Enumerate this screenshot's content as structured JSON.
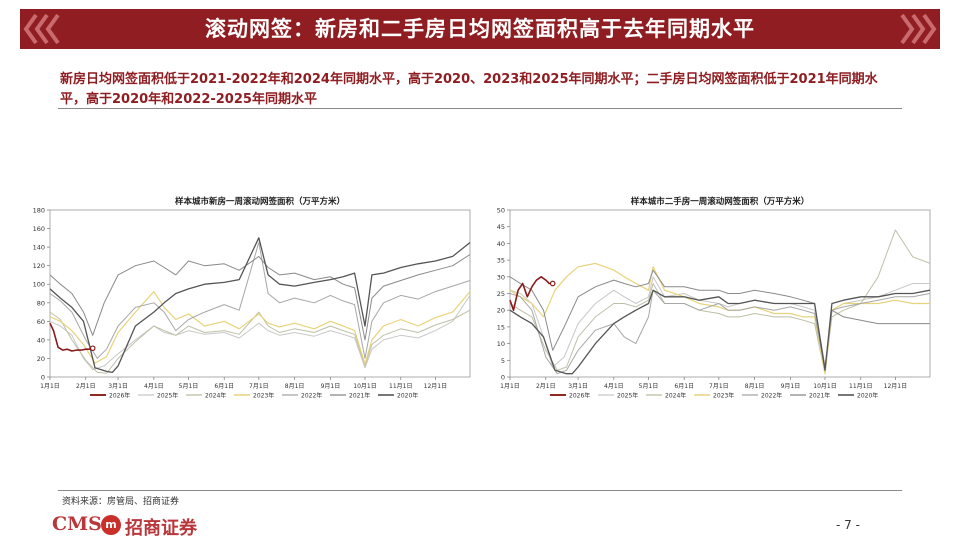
{
  "header": {
    "title": "滚动网签：新房和二手房日均网签面积高于去年同期水平",
    "colors": {
      "banner": "#8f1d21",
      "accent": "#8f1d21"
    }
  },
  "subtitle": "新房日均网签面积低于2021-2022年和2024年同期水平，高于2020、2023和2025年同期水平；二手房日均网签面积低于2021年同期水平，高于2020年和2022-2025年同期水平",
  "footer": {
    "source": "资料来源：房管局、招商证券",
    "logo_latin": "CMS",
    "logo_badge": "m",
    "logo_cn": "招商证券",
    "page": "- 7 -"
  },
  "series_styles": [
    {
      "name": "2026年",
      "color": "#8b1a1a"
    },
    {
      "name": "2025年",
      "color": "#c8c8c8"
    },
    {
      "name": "2024年",
      "color": "#bfbfa8"
    },
    {
      "name": "2023年",
      "color": "#e8d37a"
    },
    {
      "name": "2022年",
      "color": "#a7a7a7"
    },
    {
      "name": "2021年",
      "color": "#8a8a8a"
    },
    {
      "name": "2020年",
      "color": "#555555"
    }
  ],
  "chart_data": [
    {
      "type": "line",
      "title": "样本城市新房一周滚动网签面积（万平方米）",
      "ylim": [
        0,
        180
      ],
      "yticks": [
        "0",
        "20",
        "40",
        "60",
        "80",
        "100",
        "120",
        "140",
        "160",
        "180"
      ],
      "month_positions": [
        1,
        32,
        60,
        91,
        121,
        152,
        182,
        213,
        244,
        274,
        305,
        335
      ],
      "x_tick_labels": [
        "1月1日",
        "2月1日",
        "3月1日",
        "4月1日",
        "5月1日",
        "6月1日",
        "7月1日",
        "8月1日",
        "9月1日",
        "10月1日",
        "11月1日",
        "12月1日"
      ],
      "xlim": [
        1,
        365
      ],
      "series": [
        {
          "name": "2026年",
          "color": "#8b1a1a",
          "width": 1.6,
          "x": [
            1,
            4,
            8,
            12,
            16,
            20,
            24,
            28,
            32,
            35,
            38
          ],
          "y": [
            58,
            50,
            32,
            29,
            30,
            28,
            29,
            29,
            30,
            30,
            31
          ]
        },
        {
          "name": "2025年",
          "color": "#c8c8c8",
          "width": 1.0,
          "x": [
            1,
            10,
            20,
            30,
            38,
            48,
            60,
            75,
            91,
            100,
            110,
            121,
            135,
            152,
            165,
            182,
            190,
            200,
            213,
            230,
            244,
            255,
            265,
            274,
            280,
            290,
            305,
            320,
            335,
            350,
            365
          ],
          "y": [
            60,
            55,
            45,
            20,
            8,
            12,
            25,
            40,
            55,
            48,
            45,
            50,
            46,
            48,
            42,
            58,
            50,
            45,
            48,
            44,
            50,
            46,
            42,
            10,
            30,
            40,
            45,
            42,
            50,
            60,
            88
          ]
        },
        {
          "name": "2024年",
          "color": "#bfbfa8",
          "width": 1.0,
          "x": [
            1,
            10,
            20,
            32,
            42,
            50,
            60,
            75,
            91,
            100,
            110,
            121,
            135,
            152,
            165,
            182,
            190,
            200,
            213,
            230,
            244,
            255,
            265,
            274,
            280,
            290,
            305,
            320,
            335,
            350,
            365
          ],
          "y": [
            70,
            62,
            40,
            18,
            5,
            4,
            20,
            38,
            55,
            50,
            45,
            55,
            48,
            50,
            46,
            70,
            55,
            48,
            52,
            48,
            55,
            50,
            46,
            12,
            35,
            45,
            52,
            48,
            56,
            62,
            72
          ]
        },
        {
          "name": "2023年",
          "color": "#e8d37a",
          "width": 1.2,
          "x": [
            1,
            10,
            20,
            30,
            40,
            50,
            60,
            75,
            91,
            100,
            110,
            121,
            135,
            152,
            165,
            182,
            190,
            200,
            213,
            230,
            244,
            255,
            265,
            274,
            280,
            290,
            305,
            320,
            335,
            350,
            365
          ],
          "y": [
            65,
            60,
            50,
            35,
            15,
            22,
            48,
            70,
            92,
            75,
            62,
            68,
            55,
            60,
            52,
            68,
            58,
            54,
            58,
            52,
            60,
            55,
            50,
            14,
            40,
            55,
            62,
            55,
            64,
            70,
            92
          ]
        },
        {
          "name": "2022年",
          "color": "#a7a7a7",
          "width": 1.0,
          "x": [
            1,
            10,
            20,
            32,
            42,
            50,
            60,
            75,
            91,
            100,
            110,
            121,
            135,
            152,
            165,
            182,
            190,
            200,
            213,
            230,
            244,
            255,
            265,
            274,
            280,
            290,
            305,
            320,
            335,
            350,
            365
          ],
          "y": [
            90,
            82,
            70,
            40,
            20,
            30,
            55,
            75,
            80,
            70,
            50,
            62,
            70,
            78,
            72,
            145,
            90,
            80,
            85,
            80,
            88,
            82,
            78,
            20,
            60,
            80,
            88,
            84,
            92,
            98,
            104
          ]
        },
        {
          "name": "2021年",
          "color": "#8a8a8a",
          "width": 1.0,
          "x": [
            1,
            10,
            20,
            30,
            38,
            48,
            60,
            75,
            91,
            100,
            110,
            121,
            135,
            152,
            165,
            182,
            190,
            200,
            213,
            230,
            244,
            255,
            265,
            274,
            280,
            290,
            305,
            320,
            335,
            350,
            365
          ],
          "y": [
            110,
            100,
            90,
            70,
            45,
            80,
            110,
            120,
            125,
            118,
            110,
            125,
            120,
            122,
            115,
            130,
            118,
            110,
            112,
            105,
            108,
            100,
            96,
            40,
            85,
            98,
            104,
            110,
            115,
            120,
            132
          ]
        },
        {
          "name": "2020年",
          "color": "#555555",
          "width": 1.3,
          "x": [
            1,
            10,
            20,
            30,
            40,
            50,
            55,
            60,
            75,
            91,
            100,
            110,
            121,
            135,
            152,
            165,
            182,
            190,
            200,
            213,
            230,
            244,
            255,
            265,
            274,
            280,
            290,
            305,
            320,
            335,
            350,
            365
          ],
          "y": [
            95,
            85,
            75,
            60,
            10,
            6,
            5,
            12,
            55,
            70,
            80,
            90,
            95,
            100,
            102,
            105,
            150,
            110,
            100,
            98,
            102,
            105,
            108,
            112,
            55,
            110,
            112,
            118,
            122,
            125,
            130,
            145
          ]
        }
      ]
    },
    {
      "type": "line",
      "title": "样本城市二手房一周滚动网签面积（万平方米）",
      "ylim": [
        0,
        50
      ],
      "yticks": [
        "0",
        "5",
        "10",
        "15",
        "20",
        "25",
        "30",
        "35",
        "40",
        "45",
        "50"
      ],
      "month_positions": [
        1,
        32,
        60,
        91,
        121,
        152,
        182,
        213,
        244,
        274,
        305,
        335
      ],
      "x_tick_labels": [
        "1月1日",
        "2月1日",
        "3月1日",
        "4月1日",
        "5月1日",
        "6月1日",
        "7月1日",
        "8月1日",
        "9月1日",
        "10月1日",
        "11月1日",
        "12月1日"
      ],
      "xlim": [
        1,
        365
      ],
      "series": [
        {
          "name": "2026年",
          "color": "#8b1a1a",
          "width": 1.6,
          "x": [
            1,
            4,
            8,
            12,
            16,
            20,
            24,
            28,
            32,
            35,
            38
          ],
          "y": [
            23,
            20,
            26,
            28,
            24,
            27,
            29,
            30,
            29,
            28,
            28
          ]
        },
        {
          "name": "2025年",
          "color": "#c8c8c8",
          "width": 1.0,
          "x": [
            1,
            10,
            20,
            30,
            38,
            48,
            60,
            75,
            91,
            100,
            110,
            121,
            125,
            135,
            152,
            165,
            182,
            190,
            200,
            213,
            230,
            244,
            255,
            265,
            274,
            280,
            290,
            305,
            320,
            335,
            350,
            365
          ],
          "y": [
            26,
            25,
            22,
            12,
            3,
            6,
            16,
            22,
            26,
            24,
            22,
            24,
            30,
            24,
            25,
            23,
            22,
            21,
            22,
            23,
            22,
            22,
            21,
            20,
            2,
            20,
            22,
            23,
            24,
            26,
            28,
            28
          ]
        },
        {
          "name": "2024年",
          "color": "#bfbfa8",
          "width": 1.0,
          "x": [
            1,
            10,
            20,
            32,
            42,
            50,
            60,
            75,
            91,
            100,
            110,
            121,
            125,
            135,
            152,
            165,
            182,
            190,
            200,
            213,
            230,
            244,
            255,
            265,
            274,
            280,
            290,
            305,
            320,
            335,
            350,
            365
          ],
          "y": [
            22,
            20,
            18,
            8,
            2,
            3,
            12,
            18,
            22,
            22,
            21,
            23,
            28,
            22,
            22,
            20,
            19,
            18,
            18,
            19,
            18,
            18,
            17,
            16,
            1,
            18,
            20,
            22,
            30,
            44,
            36,
            34
          ]
        },
        {
          "name": "2023年",
          "color": "#e8d37a",
          "width": 1.2,
          "x": [
            1,
            10,
            20,
            30,
            40,
            50,
            60,
            75,
            91,
            100,
            110,
            121,
            125,
            135,
            152,
            165,
            182,
            190,
            200,
            213,
            230,
            244,
            255,
            265,
            274,
            280,
            290,
            305,
            320,
            335,
            350,
            365
          ],
          "y": [
            26,
            24,
            22,
            18,
            26,
            30,
            33,
            34,
            32,
            30,
            28,
            26,
            33,
            26,
            24,
            22,
            21,
            20,
            20,
            21,
            19,
            19,
            18,
            18,
            1,
            20,
            22,
            22,
            22,
            23,
            22,
            22
          ]
        },
        {
          "name": "2022年",
          "color": "#a7a7a7",
          "width": 1.0,
          "x": [
            1,
            10,
            20,
            32,
            42,
            50,
            60,
            75,
            91,
            100,
            110,
            121,
            125,
            135,
            152,
            165,
            182,
            190,
            200,
            213,
            230,
            244,
            255,
            265,
            274,
            280,
            290,
            305,
            320,
            335,
            350,
            365
          ],
          "y": [
            25,
            24,
            20,
            6,
            1,
            2,
            8,
            14,
            16,
            12,
            10,
            18,
            26,
            22,
            22,
            20,
            22,
            20,
            20,
            21,
            20,
            21,
            20,
            19,
            2,
            20,
            21,
            22,
            23,
            24,
            24,
            25
          ]
        },
        {
          "name": "2021年",
          "color": "#8a8a8a",
          "width": 1.0,
          "x": [
            1,
            10,
            20,
            30,
            38,
            48,
            60,
            75,
            91,
            100,
            110,
            121,
            125,
            135,
            152,
            165,
            182,
            190,
            200,
            213,
            230,
            244,
            255,
            265,
            274,
            280,
            290,
            305,
            320,
            335,
            350,
            365
          ],
          "y": [
            30,
            28,
            26,
            20,
            8,
            15,
            24,
            27,
            29,
            28,
            27,
            28,
            32,
            27,
            27,
            26,
            26,
            25,
            25,
            26,
            25,
            24,
            23,
            22,
            3,
            20,
            18,
            17,
            16,
            16,
            16,
            16
          ]
        },
        {
          "name": "2020年",
          "color": "#555555",
          "width": 1.3,
          "x": [
            1,
            10,
            20,
            30,
            40,
            50,
            55,
            60,
            75,
            91,
            100,
            110,
            121,
            125,
            135,
            152,
            165,
            182,
            190,
            200,
            213,
            230,
            244,
            255,
            265,
            274,
            280,
            290,
            305,
            320,
            335,
            350,
            365
          ],
          "y": [
            20,
            18,
            16,
            12,
            2,
            1,
            1,
            3,
            10,
            16,
            18,
            20,
            22,
            26,
            24,
            24,
            23,
            24,
            22,
            22,
            23,
            22,
            22,
            22,
            22,
            2,
            22,
            23,
            24,
            24,
            25,
            25,
            26
          ]
        }
      ]
    }
  ]
}
